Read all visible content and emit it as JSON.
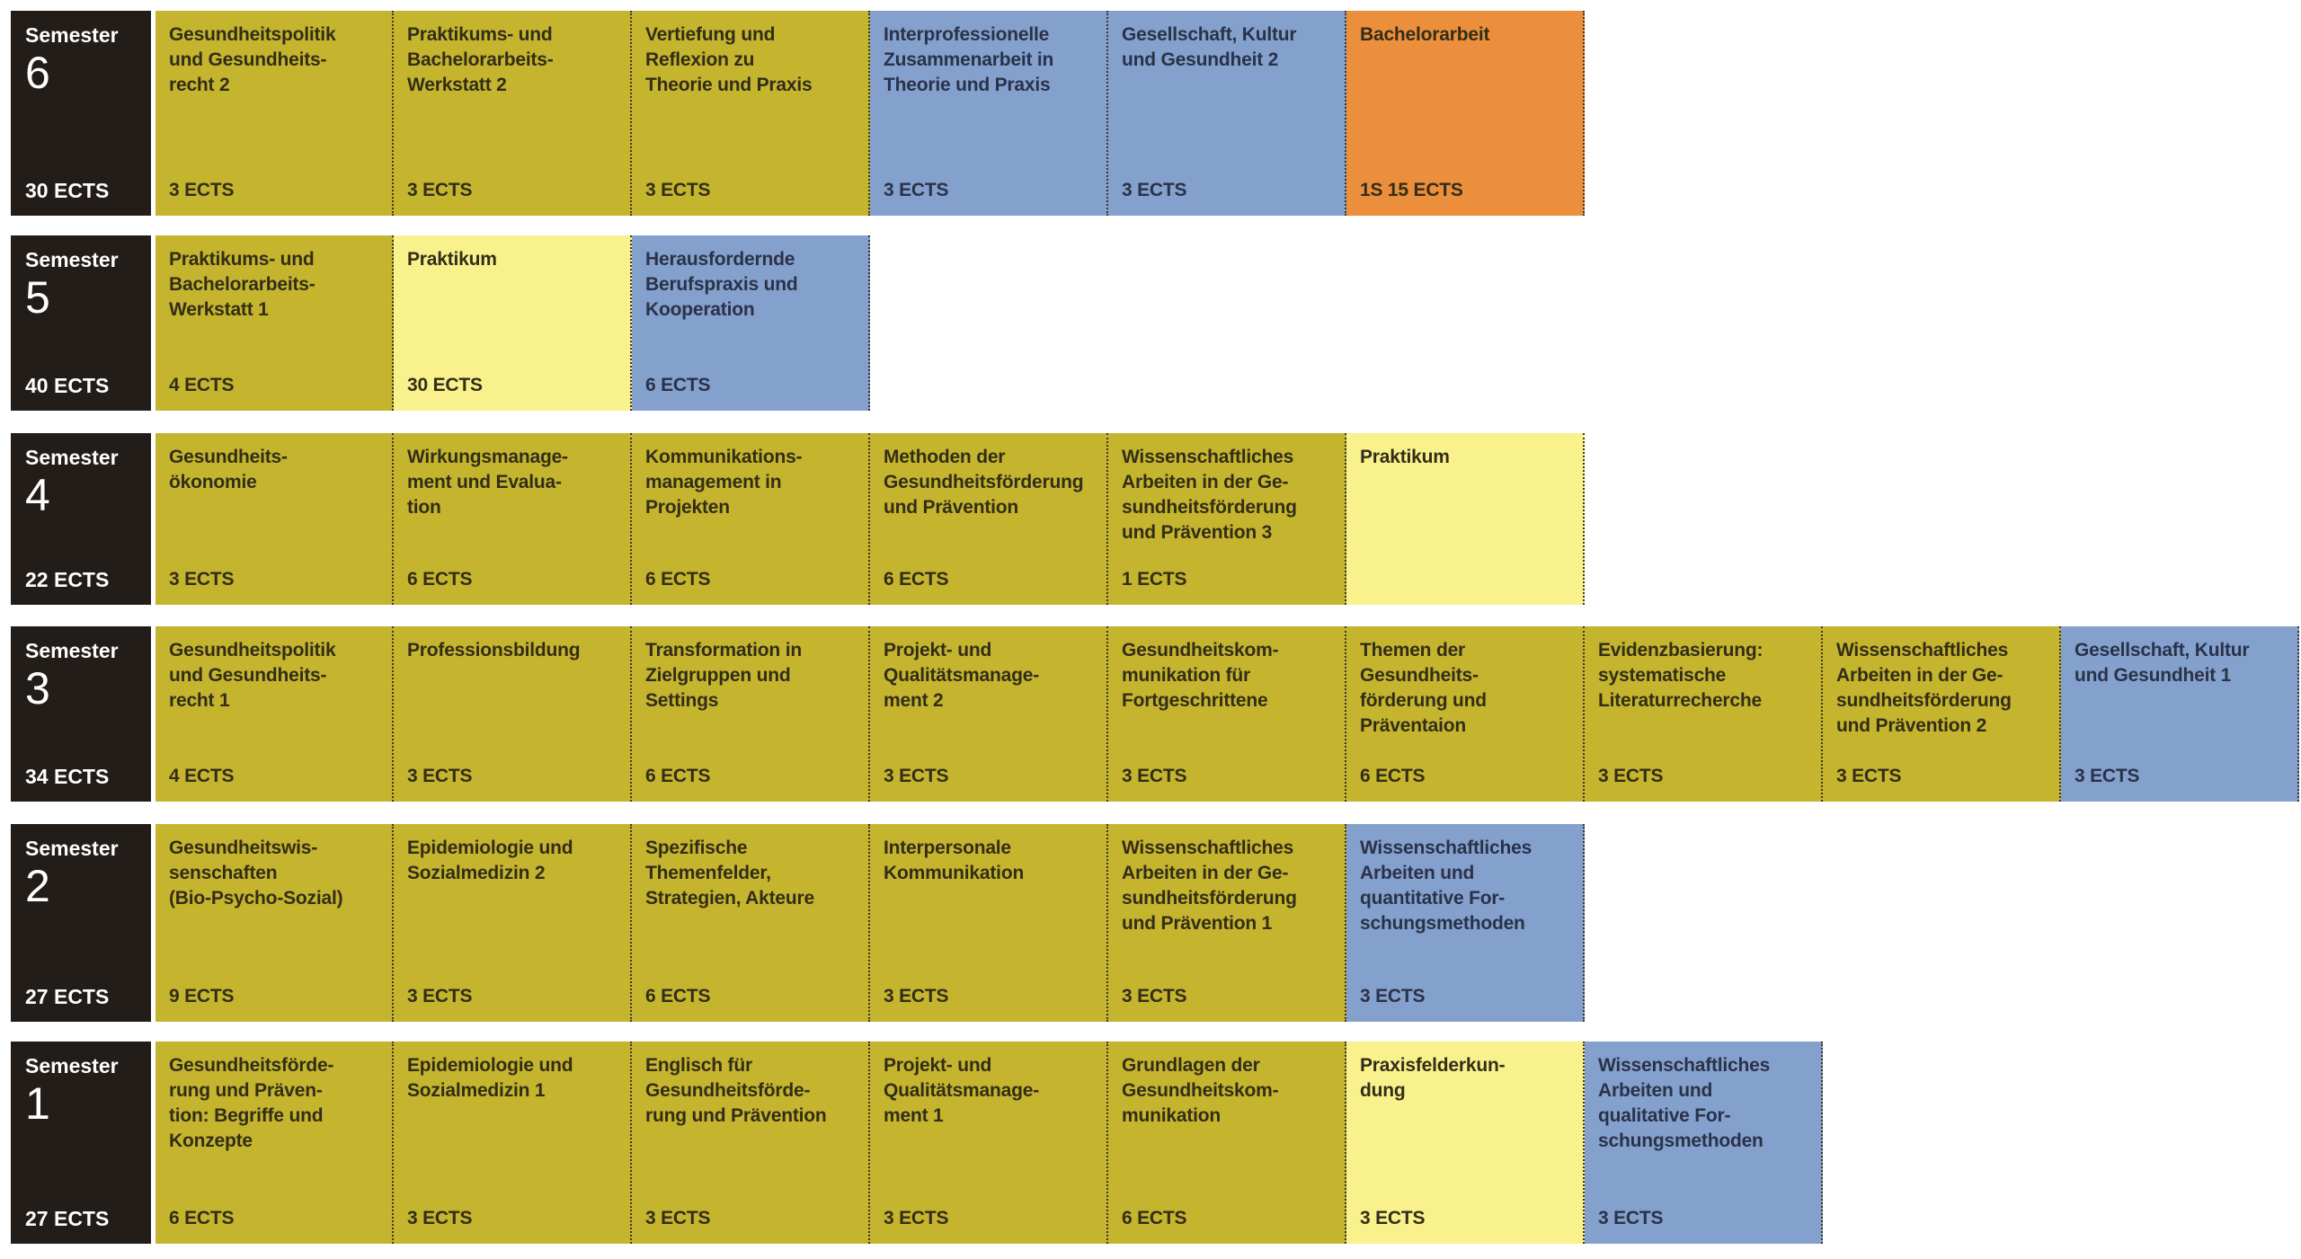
{
  "colors": {
    "olive": "#c5b42e",
    "yellow": "#f9f18c",
    "blue": "#84a0cd",
    "orange": "#ec8f3d",
    "black": "#221d19",
    "white": "#ffffff",
    "text_dark": "#322d17",
    "text_blue_box": "#2a3248"
  },
  "rows": [
    {
      "semester_label": "Semester",
      "semester_number": "6",
      "total_ects": "30 ECTS",
      "modules": [
        {
          "title": "Gesundheitspolitik\nund Gesundheits-\nrecht 2",
          "ects": "3 ECTS",
          "color": "olive"
        },
        {
          "title": "Praktikums- und\nBachelorarbeits-\nWerkstatt 2",
          "ects": "3 ECTS",
          "color": "olive"
        },
        {
          "title": "Vertiefung und\nReflexion zu\nTheorie und Praxis",
          "ects": "3 ECTS",
          "color": "olive"
        },
        {
          "title": "Interprofessionelle\nZusammenarbeit in\nTheorie und Praxis",
          "ects": "3 ECTS",
          "color": "blue"
        },
        {
          "title": "Gesellschaft, Kultur\nund Gesundheit 2",
          "ects": "3 ECTS",
          "color": "blue"
        },
        {
          "title": "Bachelorarbeit",
          "ects": "1S 15 ECTS",
          "color": "orange"
        }
      ]
    },
    {
      "semester_label": "Semester",
      "semester_number": "5",
      "total_ects": "40 ECTS",
      "modules": [
        {
          "title": "Praktikums- und\nBachelorarbeits-\nWerkstatt 1",
          "ects": "4 ECTS",
          "color": "olive"
        },
        {
          "title": "Praktikum",
          "ects": "30 ECTS",
          "color": "yellow"
        },
        {
          "title": "Herausfordernde\nBerufspraxis und\nKooperation",
          "ects": "6 ECTS",
          "color": "blue"
        }
      ]
    },
    {
      "semester_label": "Semester",
      "semester_number": "4",
      "total_ects": "22 ECTS",
      "modules": [
        {
          "title": "Gesundheits-\nökonomie",
          "ects": "3 ECTS",
          "color": "olive"
        },
        {
          "title": "Wirkungsmanage-\nment und Evalua-\ntion",
          "ects": "6 ECTS",
          "color": "olive"
        },
        {
          "title": "Kommunikations-\nmanagement in\nProjekten",
          "ects": "6 ECTS",
          "color": "olive"
        },
        {
          "title": "Methoden der\nGesundheitsförderung\nund Prävention",
          "ects": "6 ECTS",
          "color": "olive"
        },
        {
          "title": "Wissenschaftliches\nArbeiten in der Ge-\nsundheitsförderung\nund Prävention 3",
          "ects": "1 ECTS",
          "color": "olive"
        },
        {
          "title": "Praktikum",
          "ects": "",
          "color": "yellow"
        }
      ]
    },
    {
      "semester_label": "Semester",
      "semester_number": "3",
      "total_ects": "34 ECTS",
      "modules": [
        {
          "title": "Gesundheitspolitik\nund Gesundheits-\nrecht 1",
          "ects": "4 ECTS",
          "color": "olive"
        },
        {
          "title": "Professionsbildung",
          "ects": "3 ECTS",
          "color": "olive"
        },
        {
          "title": "Transformation in\nZielgruppen und\nSettings",
          "ects": "6 ECTS",
          "color": "olive"
        },
        {
          "title": "Projekt- und\nQualitätsmanage-\nment 2",
          "ects": "3 ECTS",
          "color": "olive"
        },
        {
          "title": "Gesundheitskom-\nmunikation für\nFortgeschrittene",
          "ects": "3 ECTS",
          "color": "olive"
        },
        {
          "title": "Themen der\nGesundheits-\nförderung und\nPräventaion",
          "ects": "6 ECTS",
          "color": "olive"
        },
        {
          "title": "Evidenzbasierung:\nsystematische\nLiteraturrecherche",
          "ects": "3 ECTS",
          "color": "olive"
        },
        {
          "title": "Wissenschaftliches\nArbeiten in der Ge-\nsundheitsförderung\nund Prävention 2",
          "ects": "3 ECTS",
          "color": "olive"
        },
        {
          "title": "Gesellschaft, Kultur\nund Gesundheit 1",
          "ects": "3 ECTS",
          "color": "blue"
        }
      ]
    },
    {
      "semester_label": "Semester",
      "semester_number": "2",
      "total_ects": "27 ECTS",
      "modules": [
        {
          "title": "Gesundheitswis-\nsenschaften\n(Bio-Psycho-Sozial)",
          "ects": "9 ECTS",
          "color": "olive"
        },
        {
          "title": "Epidemiologie und\nSozialmedizin 2",
          "ects": "3 ECTS",
          "color": "olive"
        },
        {
          "title": "Spezifische\nThemenfelder,\nStrategien, Akteure",
          "ects": "6 ECTS",
          "color": "olive"
        },
        {
          "title": "Interpersonale\nKommunikation",
          "ects": "3 ECTS",
          "color": "olive"
        },
        {
          "title": "Wissenschaftliches\nArbeiten in der Ge-\nsundheitsförderung\nund Prävention 1",
          "ects": "3 ECTS",
          "color": "olive"
        },
        {
          "title": "Wissenschaftliches\nArbeiten und\nquantitative For-\nschungsmethoden",
          "ects": "3 ECTS",
          "color": "blue"
        }
      ]
    },
    {
      "semester_label": "Semester",
      "semester_number": "1",
      "total_ects": "27 ECTS",
      "modules": [
        {
          "title": "Gesundheitsförde-\nrung und Präven-\ntion: Begriffe und\nKonzepte",
          "ects": "6 ECTS",
          "color": "olive"
        },
        {
          "title": "Epidemiologie und\nSozialmedizin 1",
          "ects": "3 ECTS",
          "color": "olive"
        },
        {
          "title": "Englisch für\nGesundheitsförde-\nrung und Prävention",
          "ects": "3 ECTS",
          "color": "olive"
        },
        {
          "title": "Projekt- und\nQualitätsmanage-\nment 1",
          "ects": "3 ECTS",
          "color": "olive"
        },
        {
          "title": "Grundlagen der\nGesundheitskom-\nmunikation",
          "ects": "6 ECTS",
          "color": "olive"
        },
        {
          "title": "Praxisfelderkun-\ndung",
          "ects": "3 ECTS",
          "color": "yellow"
        },
        {
          "title": "Wissenschaftliches\nArbeiten und\nqualitative For-\nschungsmethoden",
          "ects": "3 ECTS",
          "color": "blue"
        }
      ]
    }
  ]
}
